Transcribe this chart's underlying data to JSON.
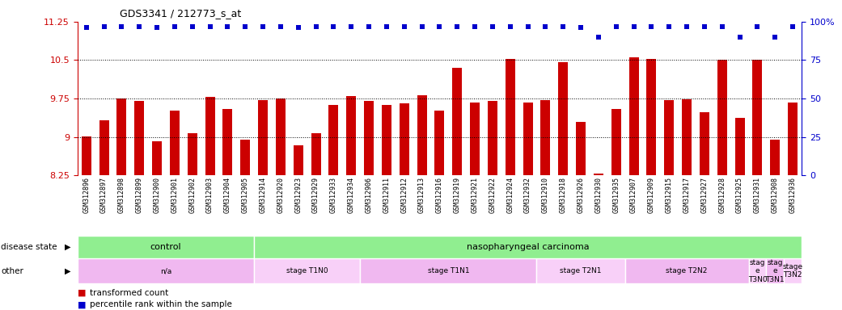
{
  "title": "GDS3341 / 212773_s_at",
  "samples": [
    "GSM312896",
    "GSM312897",
    "GSM312898",
    "GSM312899",
    "GSM312900",
    "GSM312901",
    "GSM312902",
    "GSM312903",
    "GSM312904",
    "GSM312905",
    "GSM312914",
    "GSM312920",
    "GSM312923",
    "GSM312929",
    "GSM312933",
    "GSM312934",
    "GSM312906",
    "GSM312911",
    "GSM312912",
    "GSM312913",
    "GSM312916",
    "GSM312919",
    "GSM312921",
    "GSM312922",
    "GSM312924",
    "GSM312932",
    "GSM312910",
    "GSM312918",
    "GSM312926",
    "GSM312930",
    "GSM312935",
    "GSM312907",
    "GSM312909",
    "GSM312915",
    "GSM312917",
    "GSM312927",
    "GSM312928",
    "GSM312925",
    "GSM312931",
    "GSM312908",
    "GSM312936"
  ],
  "bar_values": [
    9.01,
    9.32,
    9.75,
    9.7,
    8.92,
    9.52,
    9.08,
    9.78,
    9.55,
    8.95,
    9.72,
    9.75,
    8.84,
    9.08,
    9.62,
    9.8,
    9.7,
    9.63,
    9.65,
    9.82,
    9.51,
    10.35,
    9.68,
    9.7,
    10.52,
    9.68,
    9.72,
    10.46,
    9.3,
    8.28,
    9.55,
    10.55,
    10.52,
    9.72,
    9.73,
    9.48,
    10.5,
    9.38,
    10.5,
    8.95,
    9.68
  ],
  "percentile_values": [
    96,
    97,
    97,
    97,
    96,
    97,
    97,
    97,
    97,
    97,
    97,
    97,
    96,
    97,
    97,
    97,
    97,
    97,
    97,
    97,
    97,
    97,
    97,
    97,
    97,
    97,
    97,
    97,
    96,
    90,
    97,
    97,
    97,
    97,
    97,
    97,
    97,
    90,
    97,
    90,
    97
  ],
  "ylim": [
    8.25,
    11.25
  ],
  "yticks": [
    8.25,
    9.0,
    9.75,
    10.5,
    11.25
  ],
  "ytick_labels": [
    "8.25",
    "9",
    "9.75",
    "10.5",
    "11.25"
  ],
  "y2lim": [
    0,
    100
  ],
  "y2ticks": [
    0,
    25,
    50,
    75,
    100
  ],
  "y2tick_labels": [
    "0",
    "25",
    "50",
    "75",
    "100%"
  ],
  "bar_color": "#cc0000",
  "dot_color": "#0000cc",
  "bg_color": "#ffffff",
  "xtick_bg": "#d8d8d8",
  "disease_state_labels": [
    {
      "label": "control",
      "start": 0,
      "end": 10,
      "color": "#90ee90"
    },
    {
      "label": "nasopharyngeal carcinoma",
      "start": 10,
      "end": 41,
      "color": "#90ee90"
    }
  ],
  "other_labels": [
    {
      "label": "n/a",
      "start": 0,
      "end": 10,
      "color": "#f0b8f0"
    },
    {
      "label": "stage T1N0",
      "start": 10,
      "end": 16,
      "color": "#f8d0f8"
    },
    {
      "label": "stage T1N1",
      "start": 16,
      "end": 26,
      "color": "#f0b8f0"
    },
    {
      "label": "stage T2N1",
      "start": 26,
      "end": 31,
      "color": "#f8d0f8"
    },
    {
      "label": "stage T2N2",
      "start": 31,
      "end": 38,
      "color": "#f0b8f0"
    },
    {
      "label": "stag\ne\nT3N0",
      "start": 38,
      "end": 39,
      "color": "#f8d0f8"
    },
    {
      "label": "stag\ne\nT3N1",
      "start": 39,
      "end": 40,
      "color": "#f0b8f0"
    },
    {
      "label": "stage\nT3N2",
      "start": 40,
      "end": 41,
      "color": "#f8d0f8"
    }
  ],
  "n_samples": 41
}
